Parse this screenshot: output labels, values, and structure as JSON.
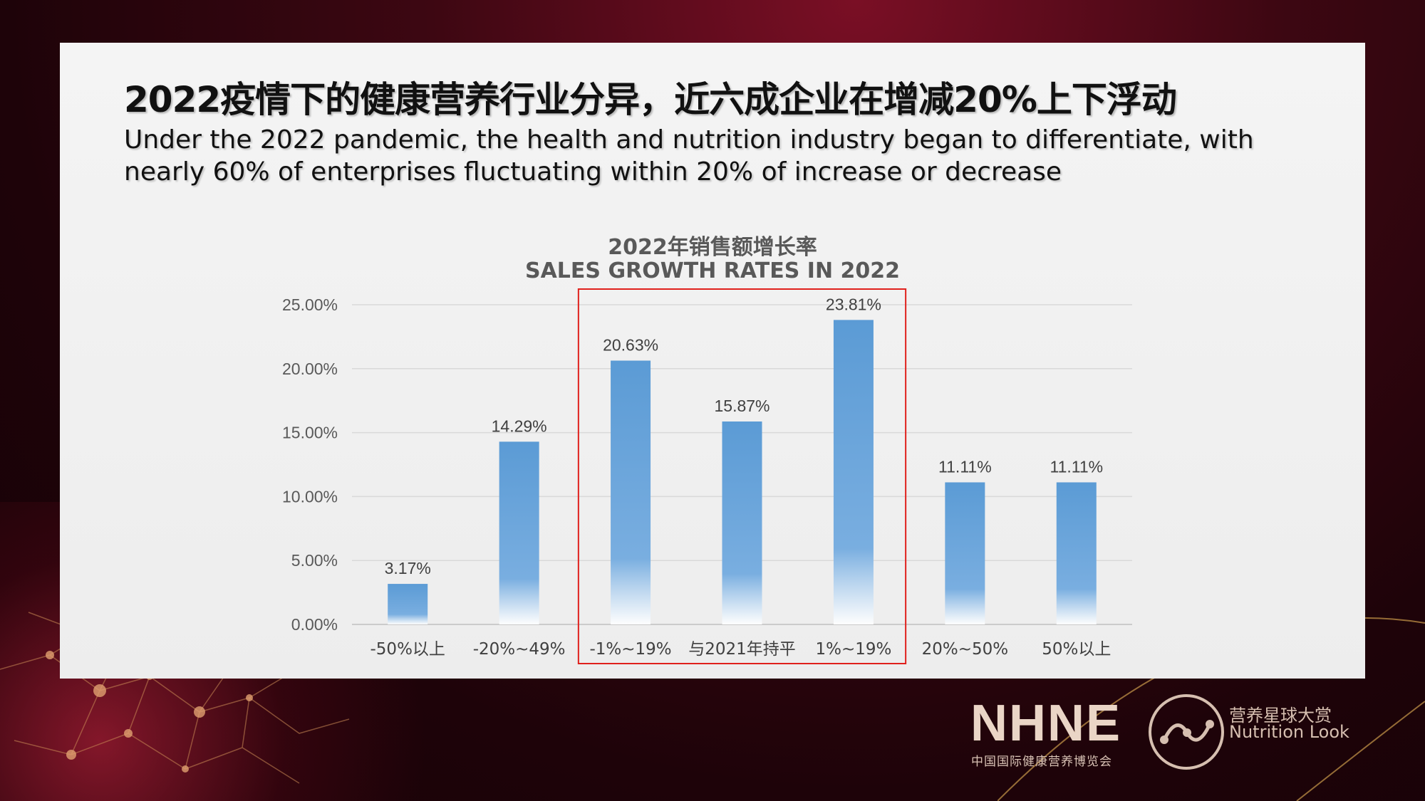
{
  "slide": {
    "title_zh": "2022疫情下的健康营养行业分异，近六成企业在增减20%上下浮动",
    "title_en": "Under the 2022 pandemic, the health and nutrition industry began to differentiate, with nearly 60% of enterprises fluctuating within 20% of increase or decrease"
  },
  "chart_data": {
    "type": "bar",
    "title": "2022年销售额增长率",
    "subtitle": "SALES GROWTH RATES IN 2022",
    "categories": [
      "-50%以上",
      "-20%~49%",
      "-1%~19%",
      "与2021年持平",
      "1%~19%",
      "20%~50%",
      "50%以上"
    ],
    "values": [
      3.17,
      14.29,
      20.63,
      15.87,
      23.81,
      11.11,
      11.11
    ],
    "value_labels": [
      "3.17%",
      "14.29%",
      "20.63%",
      "15.87%",
      "23.81%",
      "11.11%",
      "11.11%"
    ],
    "y_ticks": [
      "0.00%",
      "5.00%",
      "10.00%",
      "15.00%",
      "20.00%",
      "25.00%"
    ],
    "ylim": [
      0,
      25
    ],
    "grid": true,
    "bar_color": "#5b9bd5",
    "highlight_categories": [
      "-1%~19%",
      "与2021年持平",
      "1%~19%"
    ],
    "highlight_color": "#e0201c"
  },
  "footer": {
    "logo1_text": "NHNE",
    "logo1_sub": "中国国际健康营养博览会",
    "logo2_zh": "营养星球大赏",
    "logo2_en": "Nutrition Look"
  }
}
